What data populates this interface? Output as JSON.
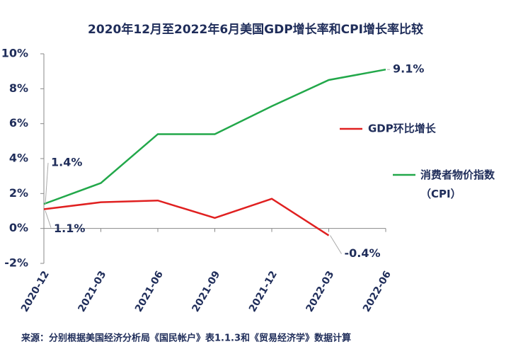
{
  "chart_data": {
    "type": "line",
    "title": "2020年12月至2022年6月美国GDP增长率和CPI增长率比较",
    "categories": [
      "2020-12",
      "2021-03",
      "2021-06",
      "2021-09",
      "2021-12",
      "2022-03",
      "2022-06"
    ],
    "series": [
      {
        "name": "GDP环比增长",
        "color": "#e02020",
        "values": [
          1.1,
          1.5,
          1.6,
          0.6,
          1.7,
          -0.4,
          null
        ],
        "value_labels": [
          null,
          null,
          null,
          null,
          null,
          "-0.4%",
          null
        ]
      },
      {
        "name": "消费者物价指数（CPI）",
        "color": "#22a84a",
        "values": [
          1.4,
          2.6,
          5.4,
          5.4,
          7.0,
          8.5,
          9.1
        ],
        "value_labels": [
          "1.4%",
          null,
          null,
          null,
          null,
          null,
          "9.1%"
        ]
      }
    ],
    "extra_labels": [
      {
        "series": 0,
        "index": 0,
        "label": "1.1%"
      }
    ],
    "ylim": [
      -2,
      10
    ],
    "yticks": [
      {
        "value": -2,
        "label": "-2%"
      },
      {
        "value": 0,
        "label": "0%"
      },
      {
        "value": 2,
        "label": "2%"
      },
      {
        "value": 4,
        "label": "4%"
      },
      {
        "value": 6,
        "label": "6%"
      },
      {
        "value": 8,
        "label": "8%"
      },
      {
        "value": 10,
        "label": "10%"
      }
    ],
    "note": "来源：分别根据美国经济分析局《国民帐户》表1.1.3和《贸易经济学》数据计算"
  }
}
